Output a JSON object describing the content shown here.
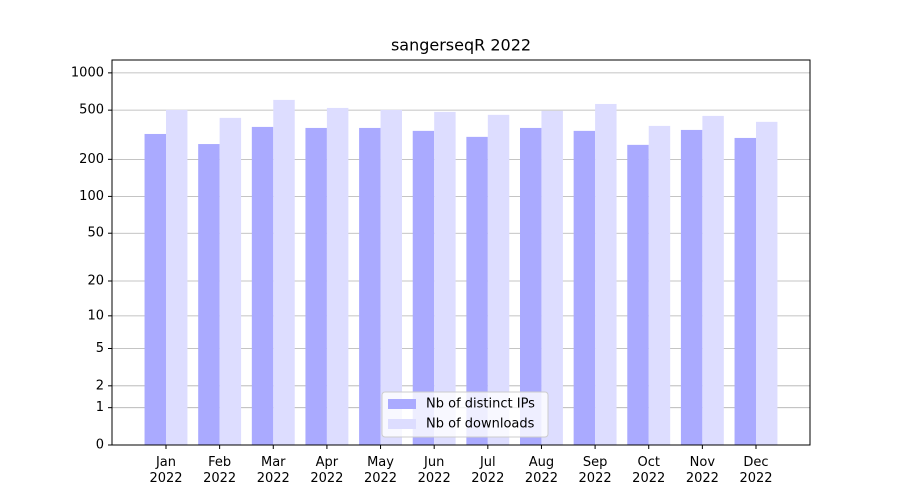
{
  "chart_data": {
    "type": "bar",
    "title": "sangerseqR 2022",
    "categories": [
      "Jan 2022",
      "Feb 2022",
      "Mar 2022",
      "Apr 2022",
      "May 2022",
      "Jun 2022",
      "Jul 2022",
      "Aug 2022",
      "Sep 2022",
      "Oct 2022",
      "Nov 2022",
      "Dec 2022"
    ],
    "series": [
      {
        "name": "Nb of distinct IPs",
        "color": "#aaaaff",
        "values": [
          321,
          266,
          366,
          359,
          359,
          340,
          304,
          359,
          340,
          262,
          346,
          298
        ]
      },
      {
        "name": "Nb of downloads",
        "color": "#ddddff",
        "values": [
          502,
          433,
          605,
          521,
          502,
          484,
          458,
          493,
          561,
          373,
          449,
          402
        ]
      }
    ],
    "yscale": "symlog",
    "ylim": [
      0,
      1270
    ],
    "yticks": [
      0,
      1,
      2,
      5,
      10,
      20,
      50,
      100,
      200,
      500,
      1000
    ],
    "grid": true,
    "legend": "lower center"
  }
}
